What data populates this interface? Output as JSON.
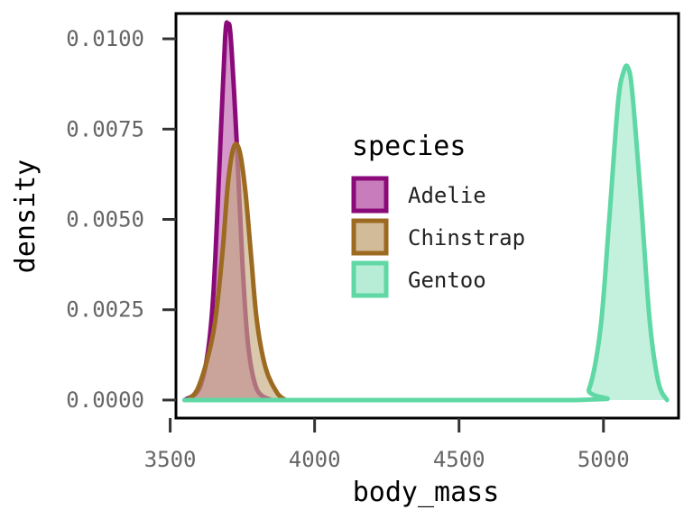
{
  "chart_data": {
    "type": "area",
    "xlabel": "body_mass",
    "ylabel": "density",
    "xlim": [
      3520,
      5260
    ],
    "ylim": [
      -0.0005,
      0.0107
    ],
    "x_ticks": [
      3500,
      4000,
      4500,
      5000
    ],
    "x_tick_labels": [
      "3500",
      "4000",
      "4500",
      "5000"
    ],
    "y_ticks": [
      0.0,
      0.0025,
      0.005,
      0.0075,
      0.01
    ],
    "y_tick_labels": [
      "0.0000",
      "0.0025",
      "0.0050",
      "0.0075",
      "0.0100"
    ],
    "grid": false,
    "legend": {
      "title": "species",
      "placement": "center"
    },
    "series": [
      {
        "name": "Adelie",
        "line_color": "#8b0a7a",
        "fill_color": "#b0449e",
        "fill_opacity": 0.55,
        "x_range": [
          3550,
          3850
        ],
        "points": [
          [
            3550,
            0.0
          ],
          [
            3600,
            0.0003
          ],
          [
            3630,
            0.0013
          ],
          [
            3650,
            0.003
          ],
          [
            3670,
            0.0064
          ],
          [
            3690,
            0.01
          ],
          [
            3700,
            0.0104
          ],
          [
            3710,
            0.01
          ],
          [
            3730,
            0.0072
          ],
          [
            3750,
            0.0038
          ],
          [
            3770,
            0.0015
          ],
          [
            3800,
            0.0003
          ],
          [
            3850,
            0.0
          ]
        ]
      },
      {
        "name": "Chinstrap",
        "line_color": "#9c6a20",
        "fill_color": "#c5aa80",
        "fill_opacity": 0.65,
        "x_range": [
          3560,
          3900
        ],
        "points": [
          [
            3560,
            0.0
          ],
          [
            3600,
            0.0004
          ],
          [
            3650,
            0.0019
          ],
          [
            3680,
            0.004
          ],
          [
            3700,
            0.006
          ],
          [
            3720,
            0.007
          ],
          [
            3740,
            0.0069
          ],
          [
            3760,
            0.0058
          ],
          [
            3780,
            0.004
          ],
          [
            3800,
            0.0022
          ],
          [
            3830,
            0.0009
          ],
          [
            3870,
            0.0002
          ],
          [
            3900,
            0.0
          ]
        ]
      },
      {
        "name": "Gentoo",
        "line_color": "#5fd8a5",
        "fill_color": "#a5e8cc",
        "fill_opacity": 0.65,
        "x_range": [
          3550,
          5220
        ],
        "points": [
          [
            3550,
            0.0
          ],
          [
            4900,
            0.0
          ],
          [
            4950,
            0.0003
          ],
          [
            4990,
            0.002
          ],
          [
            5020,
            0.005
          ],
          [
            5050,
            0.0082
          ],
          [
            5070,
            0.0091
          ],
          [
            5085,
            0.0092
          ],
          [
            5100,
            0.0085
          ],
          [
            5130,
            0.0055
          ],
          [
            5160,
            0.0022
          ],
          [
            5190,
            0.0005
          ],
          [
            5220,
            0.0
          ]
        ]
      }
    ]
  }
}
